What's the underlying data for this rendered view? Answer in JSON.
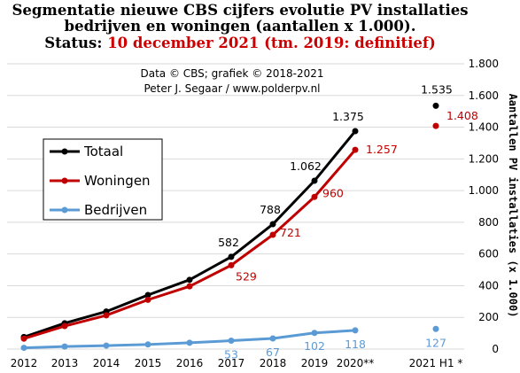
{
  "chart_data": {
    "type": "line",
    "title_lines": [
      "Segmentatie nieuwe CBS cijfers evolutie PV installaties",
      "bedrijven en woningen (aantallen x 1.000)."
    ],
    "status_label": "Status: ",
    "status_value": "10 december 2021 (tm. 2019: definitief)",
    "credit_lines": [
      "Data © CBS; grafiek © 2018-2021",
      "Peter J. Segaar / www.polderpv.nl"
    ],
    "ylabel": "Aantallen PV installaties (x 1.000)",
    "ylim": [
      0,
      1800
    ],
    "yticks": [
      0,
      200,
      400,
      600,
      800,
      1000,
      1200,
      1400,
      1600,
      1800
    ],
    "ytick_labels": [
      "0",
      "200",
      "400",
      "600",
      "800",
      "1.000",
      "1.200",
      "1.400",
      "1.600",
      "1.800"
    ],
    "categories": [
      "2012",
      "2013",
      "2014",
      "2015",
      "2016",
      "2017",
      "2018",
      "2019",
      "2020**",
      "2021 H1 *"
    ],
    "grid": true,
    "legend_position": "left",
    "series": [
      {
        "name": "Totaal",
        "color": "#000000",
        "values": [
          76,
          163,
          237,
          341,
          437,
          582,
          788,
          1062,
          1375,
          1535
        ],
        "labels": [
          "",
          "",
          "",
          "",
          "",
          "582",
          "788",
          "1.062",
          "1.375",
          "1.535"
        ]
      },
      {
        "name": "Woningen",
        "color": "#c00000",
        "values": [
          66,
          145,
          213,
          311,
          396,
          529,
          721,
          960,
          1257,
          1408
        ],
        "labels": [
          "",
          "",
          "",
          "",
          "",
          "529",
          "721",
          "960",
          "1.257",
          "1.408"
        ]
      },
      {
        "name": "Bedrijven",
        "color": "#5b9bd5",
        "values": [
          8,
          16,
          22,
          29,
          40,
          53,
          67,
          102,
          118,
          127
        ],
        "labels": [
          "",
          "",
          "",
          "",
          "",
          "53",
          "67",
          "102",
          "118",
          "127"
        ]
      }
    ]
  }
}
